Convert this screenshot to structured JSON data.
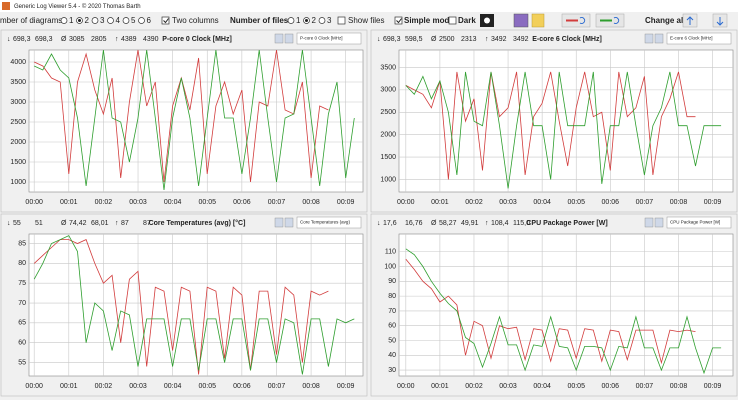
{
  "window": {
    "title": "Generic Log Viewer 5.4 - © 2020 Thomas Barth"
  },
  "toolbar": {
    "diagrams_label": "mber of diagrams",
    "diagram_options": [
      "1",
      "2",
      "3",
      "4",
      "5",
      "6"
    ],
    "two_columns": "Two columns",
    "files_label": "Number of files",
    "file_options": [
      "1",
      "2",
      "3"
    ],
    "show_files": "Show files",
    "simple_mode": "Simple mode",
    "dark": "Dark",
    "change_all": "Change all"
  },
  "chart_data": [
    {
      "type": "line",
      "title": "P-core 0 Clock [MHz]",
      "selector": "P-core 0 Clock [MHz]",
      "stats_labels": [
        "↓",
        "Ø",
        "↑"
      ],
      "stats": [
        [
          "698,3",
          "698,3"
        ],
        [
          "3085",
          "2805"
        ],
        [
          "4389",
          "4390"
        ]
      ],
      "x": [
        0,
        0.25,
        0.5,
        0.75,
        1,
        1.25,
        1.5,
        1.75,
        2,
        2.25,
        2.5,
        2.75,
        3,
        3.25,
        3.5,
        3.75,
        4,
        4.25,
        4.5,
        4.75,
        5,
        5.25,
        5.5,
        5.75,
        6,
        6.25,
        6.5,
        6.75,
        7,
        7.25,
        7.5,
        7.75,
        8,
        8.25,
        8.5,
        8.75,
        9,
        9.25
      ],
      "xlim": [
        -0.15,
        9.5
      ],
      "xticks": [
        {
          "value": 0,
          "label": "00:00"
        },
        {
          "value": 1,
          "label": "00:01"
        },
        {
          "value": 2,
          "label": "00:02"
        },
        {
          "value": 3,
          "label": "00:03"
        },
        {
          "value": 4,
          "label": "00:04"
        },
        {
          "value": 5,
          "label": "00:05"
        },
        {
          "value": 6,
          "label": "00:06"
        },
        {
          "value": 7,
          "label": "00:07"
        },
        {
          "value": 8,
          "label": "00:08"
        },
        {
          "value": 9,
          "label": "00:09"
        }
      ],
      "ylim": [
        750,
        4300
      ],
      "yticks": [
        1000,
        1500,
        2000,
        2500,
        3000,
        3500,
        4000
      ],
      "grid": true,
      "series": [
        {
          "color": "#d23c3c",
          "values": [
            4000,
            3900,
            3600,
            3500,
            1200,
            3500,
            4200,
            3300,
            2700,
            3600,
            1100,
            3000,
            4300,
            2900,
            3500,
            1000,
            2900,
            3600,
            2800,
            4100,
            1200,
            2900,
            3500,
            2700,
            3300,
            1000,
            3000,
            2900,
            4300,
            2800,
            2700,
            3500,
            1100,
            2900,
            2800,
            null,
            null,
            null
          ]
        },
        {
          "color": "#2e9e2e",
          "values": [
            3900,
            3800,
            4200,
            3800,
            3600,
            2600,
            900,
            2600,
            4300,
            2600,
            2500,
            1500,
            2600,
            4300,
            2600,
            800,
            2600,
            3600,
            2600,
            900,
            2600,
            4300,
            2600,
            2600,
            1200,
            2600,
            4300,
            2600,
            1000,
            2600,
            2700,
            4300,
            2600,
            900,
            2700,
            3500,
            1100,
            2600
          ]
        }
      ]
    },
    {
      "type": "line",
      "title": "E-core 6 Clock [MHz]",
      "selector": "E-core 6 Clock [MHz]",
      "stats_labels": [
        "↓",
        "Ø",
        "↑"
      ],
      "stats": [
        [
          "698,3",
          "598,5"
        ],
        [
          "2500",
          "2313"
        ],
        [
          "3492",
          "3492"
        ]
      ],
      "x": [
        0,
        0.25,
        0.5,
        0.75,
        1,
        1.25,
        1.5,
        1.75,
        2,
        2.25,
        2.5,
        2.75,
        3,
        3.25,
        3.5,
        3.75,
        4,
        4.25,
        4.5,
        4.75,
        5,
        5.25,
        5.5,
        5.75,
        6,
        6.25,
        6.5,
        6.75,
        7,
        7.25,
        7.5,
        7.75,
        8,
        8.25,
        8.5,
        8.75,
        9,
        9.25
      ],
      "xlim": [
        -0.2,
        9.6
      ],
      "xticks": [
        {
          "value": 0,
          "label": "00:00"
        },
        {
          "value": 1,
          "label": "00:01"
        },
        {
          "value": 2,
          "label": "00:02"
        },
        {
          "value": 3,
          "label": "00:03"
        },
        {
          "value": 4,
          "label": "00:04"
        },
        {
          "value": 5,
          "label": "00:05"
        },
        {
          "value": 6,
          "label": "00:06"
        },
        {
          "value": 7,
          "label": "00:07"
        },
        {
          "value": 8,
          "label": "00:08"
        },
        {
          "value": 9,
          "label": "00:09"
        }
      ],
      "ylim": [
        720,
        3890
      ],
      "yticks": [
        1000,
        1500,
        2000,
        2500,
        3000,
        3500
      ],
      "grid": true,
      "series": [
        {
          "color": "#d23c3c",
          "values": [
            3100,
            3000,
            2900,
            2600,
            3200,
            1000,
            3400,
            2300,
            2800,
            1200,
            3400,
            2400,
            2600,
            3400,
            1100,
            2400,
            2700,
            3400,
            2300,
            1300,
            2600,
            3400,
            2400,
            2500,
            1200,
            3400,
            2400,
            2600,
            3300,
            1100,
            2400,
            2800,
            3400,
            2400,
            2400,
            null,
            null,
            null
          ]
        },
        {
          "color": "#2e9e2e",
          "values": [
            3100,
            2900,
            3300,
            2800,
            3200,
            2500,
            1100,
            3400,
            2300,
            2200,
            3400,
            2200,
            800,
            2200,
            3400,
            2200,
            2200,
            1000,
            3400,
            2200,
            2200,
            2200,
            3400,
            900,
            2200,
            2200,
            3400,
            2200,
            1100,
            2200,
            2600,
            3400,
            2200,
            2200,
            1300,
            2200,
            2200,
            2200
          ]
        }
      ]
    },
    {
      "type": "line",
      "title": "Core Temperatures (avg) [°C]",
      "selector": "Core Temperatures (avg)",
      "stats_labels": [
        "↓",
        "Ø",
        "↑"
      ],
      "stats": [
        [
          "55",
          "51"
        ],
        [
          "74,42",
          "68,01"
        ],
        [
          "87",
          "87"
        ]
      ],
      "x": [
        0,
        0.25,
        0.5,
        0.75,
        1,
        1.25,
        1.5,
        1.75,
        2,
        2.25,
        2.5,
        2.75,
        3,
        3.25,
        3.5,
        3.75,
        4,
        4.25,
        4.5,
        4.75,
        5,
        5.25,
        5.5,
        5.75,
        6,
        6.25,
        6.5,
        6.75,
        7,
        7.25,
        7.5,
        7.75,
        8,
        8.25,
        8.5,
        8.75,
        9,
        9.25
      ],
      "xlim": [
        -0.15,
        9.5
      ],
      "xticks": [
        {
          "value": 0,
          "label": "00:00"
        },
        {
          "value": 1,
          "label": "00:01"
        },
        {
          "value": 2,
          "label": "00:02"
        },
        {
          "value": 3,
          "label": "00:03"
        },
        {
          "value": 4,
          "label": "00:04"
        },
        {
          "value": 5,
          "label": "00:05"
        },
        {
          "value": 6,
          "label": "00:06"
        },
        {
          "value": 7,
          "label": "00:07"
        },
        {
          "value": 8,
          "label": "00:08"
        },
        {
          "value": 9,
          "label": "00:09"
        }
      ],
      "ylim": [
        51.6,
        87.4
      ],
      "yticks": [
        55,
        60,
        65,
        70,
        75,
        80,
        85
      ],
      "grid": true,
      "series": [
        {
          "color": "#d23c3c",
          "values": [
            80,
            82,
            84,
            86,
            86,
            85,
            86,
            80,
            75,
            77,
            60,
            76,
            78,
            54,
            74,
            73,
            58,
            74,
            73,
            52,
            74,
            73,
            56,
            74,
            72,
            53,
            73,
            73,
            57,
            74,
            72,
            55,
            73,
            72,
            73,
            null,
            null,
            null
          ]
        },
        {
          "color": "#2e9e2e",
          "values": [
            76,
            80,
            85,
            86,
            87,
            83,
            60,
            70,
            68,
            58,
            68,
            67,
            54,
            66,
            66,
            66,
            54,
            66,
            66,
            53,
            66,
            66,
            55,
            66,
            66,
            53,
            66,
            66,
            55,
            66,
            65,
            52,
            66,
            66,
            54,
            66,
            65,
            66
          ]
        }
      ]
    },
    {
      "type": "line",
      "title": "CPU Package Power [W]",
      "selector": "CPU Package Power [W]",
      "stats_labels": [
        "↓",
        "Ø",
        "↑"
      ],
      "stats": [
        [
          "17,6",
          "16,76"
        ],
        [
          "58,27",
          "49,91"
        ],
        [
          "108,4",
          "115,0"
        ]
      ],
      "x": [
        0,
        0.25,
        0.5,
        0.75,
        1,
        1.25,
        1.5,
        1.75,
        2,
        2.25,
        2.5,
        2.75,
        3,
        3.25,
        3.5,
        3.75,
        4,
        4.25,
        4.5,
        4.75,
        5,
        5.25,
        5.5,
        5.75,
        6,
        6.25,
        6.5,
        6.75,
        7,
        7.25,
        7.5,
        7.75,
        8,
        8.25,
        8.5,
        8.75,
        9,
        9.25
      ],
      "xlim": [
        -0.2,
        9.6
      ],
      "xticks": [
        {
          "value": 0,
          "label": "00:00"
        },
        {
          "value": 1,
          "label": "00:01"
        },
        {
          "value": 2,
          "label": "00:02"
        },
        {
          "value": 3,
          "label": "00:03"
        },
        {
          "value": 4,
          "label": "00:04"
        },
        {
          "value": 5,
          "label": "00:05"
        },
        {
          "value": 6,
          "label": "00:06"
        },
        {
          "value": 7,
          "label": "00:07"
        },
        {
          "value": 8,
          "label": "00:08"
        },
        {
          "value": 9,
          "label": "00:09"
        }
      ],
      "ylim": [
        26,
        122
      ],
      "yticks": [
        30,
        40,
        50,
        60,
        70,
        80,
        90,
        100,
        110
      ],
      "grid": true,
      "series": [
        {
          "color": "#d23c3c",
          "values": [
            105,
            98,
            90,
            85,
            76,
            80,
            74,
            40,
            63,
            60,
            38,
            60,
            58,
            59,
            37,
            58,
            57,
            36,
            58,
            57,
            38,
            58,
            57,
            36,
            57,
            56,
            37,
            57,
            57,
            57,
            35,
            57,
            56,
            57,
            56,
            null,
            null,
            null
          ]
        },
        {
          "color": "#2e9e2e",
          "values": [
            112,
            108,
            100,
            90,
            82,
            75,
            70,
            52,
            48,
            32,
            48,
            66,
            47,
            47,
            30,
            47,
            46,
            66,
            46,
            45,
            30,
            46,
            46,
            45,
            30,
            46,
            45,
            66,
            45,
            45,
            30,
            45,
            45,
            66,
            45,
            28,
            45,
            45
          ]
        }
      ]
    }
  ]
}
